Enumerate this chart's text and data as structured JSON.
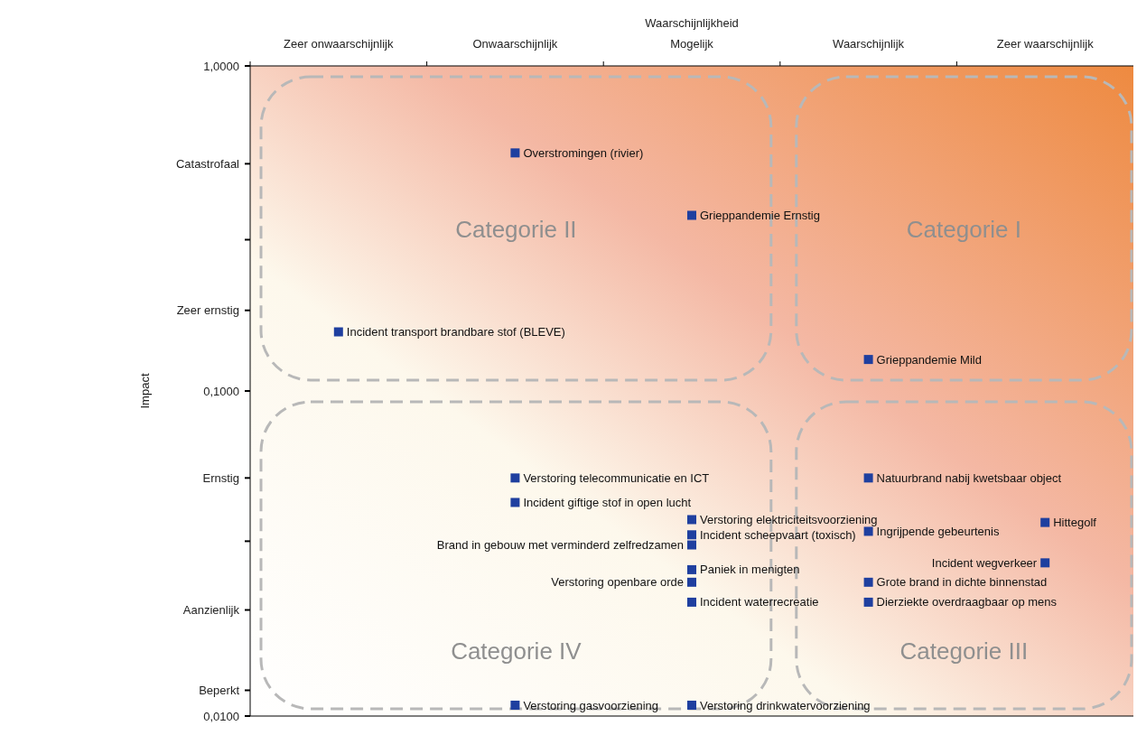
{
  "chart_data": {
    "type": "scatter",
    "xlabel": "Waarschijnlijkheid",
    "ylabel": "Impact",
    "categories": [
      "Zeer onwaarschijnlijk",
      "Onwaarschijnlijk",
      "Mogelijk",
      "Waarschijnlijk",
      "Zeer waarschijnlijk"
    ],
    "log": true,
    "ylim": [
      0.01,
      1
    ],
    "yticks": [
      {
        "value": 1,
        "label": "1,0000"
      },
      {
        "value": 0.5,
        "label": "Catastrofaal"
      },
      {
        "value": 0.292,
        "label": null
      },
      {
        "value": 0.177,
        "label": "Zeer ernstig"
      },
      {
        "value": 0.1,
        "label": "0,1000"
      },
      {
        "value": 0.054,
        "label": "Ernstig"
      },
      {
        "value": 0.0345,
        "label": null
      },
      {
        "value": 0.0212,
        "label": "Aanzienlijk"
      },
      {
        "value": 0.012,
        "label": "Beperkt"
      },
      {
        "value": 0.01,
        "label": "0,0100"
      }
    ],
    "marker": "square",
    "grid": false,
    "series": [
      {
        "color": "#1f3f9f",
        "x": [
          "Onwaarschijnlijk",
          "Mogelijk",
          "Zeer onwaarschijnlijk",
          "Waarschijnlijk",
          "Onwaarschijnlijk",
          "Onwaarschijnlijk",
          "Mogelijk",
          "Mogelijk",
          "Mogelijk",
          "Mogelijk",
          "Mogelijk",
          "Mogelijk",
          "Mogelijk",
          "Onwaarschijnlijk",
          "Waarschijnlijk",
          "Waarschijnlijk",
          "Waarschijnlijk",
          "Waarschijnlijk",
          "Zeer waarschijnlijk",
          "Zeer waarschijnlijk"
        ],
        "values": [
          0.54,
          0.347,
          0.152,
          0.125,
          0.054,
          0.0454,
          0.0402,
          0.0361,
          0.0336,
          0.0282,
          0.0258,
          0.0224,
          0.0108,
          0.0108,
          0.054,
          0.037,
          0.0258,
          0.0224,
          0.0394,
          0.0296
        ]
      }
    ],
    "annotations": [
      "Categorie II",
      "Categorie I",
      "Categorie IV",
      "Categorie III",
      {
        "text": "Overstromingen (rivier)",
        "x": "Onwaarschijnlijk",
        "y": 0.54
      },
      {
        "text": "Grieppandemie Ernstig",
        "x": "Mogelijk",
        "y": 0.347
      },
      {
        "text": "Incident transport brandbare stof (BLEVE)",
        "x": "Zeer onwaarschijnlijk",
        "y": 0.152
      },
      {
        "text": "Grieppandemie Mild",
        "x": "Waarschijnlijk",
        "y": 0.125
      },
      {
        "text": "Verstoring telecommunicatie en ICT",
        "x": "Onwaarschijnlijk",
        "y": 0.054
      },
      {
        "text": "Incident giftige stof in open lucht",
        "x": "Onwaarschijnlijk",
        "y": 0.0454
      },
      {
        "text": "Verstoring elektriciteitsvoorziening",
        "x": "Mogelijk",
        "y": 0.0402
      },
      {
        "text": "Incident scheepvaart (toxisch)",
        "x": "Mogelijk",
        "y": 0.0361
      },
      {
        "text": "Brand in gebouw met verminderd zelfredzamen",
        "x": "Mogelijk",
        "y": 0.0336
      },
      {
        "text": "Paniek in menigten",
        "x": "Mogelijk",
        "y": 0.0282
      },
      {
        "text": "Verstoring openbare orde",
        "x": "Mogelijk",
        "y": 0.0258
      },
      {
        "text": "Incident waterrecreatie",
        "x": "Mogelijk",
        "y": 0.0224
      },
      {
        "text": "Verstoring drinkwatervoorziening",
        "x": "Mogelijk",
        "y": 0.0108
      },
      {
        "text": "Verstoring gasvoorziening",
        "x": "Onwaarschijnlijk",
        "y": 0.0108
      },
      {
        "text": "Natuurbrand nabij kwetsbaar object",
        "x": "Waarschijnlijk",
        "y": 0.054
      },
      {
        "text": "Ingrijpende gebeurtenis",
        "x": "Waarschijnlijk",
        "y": 0.037
      },
      {
        "text": "Grote brand in dichte binnenstad",
        "x": "Waarschijnlijk",
        "y": 0.0258
      },
      {
        "text": "Dierziekte overdraagbaar op mens",
        "x": "Waarschijnlijk",
        "y": 0.0224
      },
      {
        "text": "Hittegolf",
        "x": "Zeer waarschijnlijk",
        "y": 0.0394
      },
      {
        "text": "Incident wegverkeer",
        "x": "Zeer waarschijnlijk",
        "y": 0.0296
      }
    ]
  }
}
